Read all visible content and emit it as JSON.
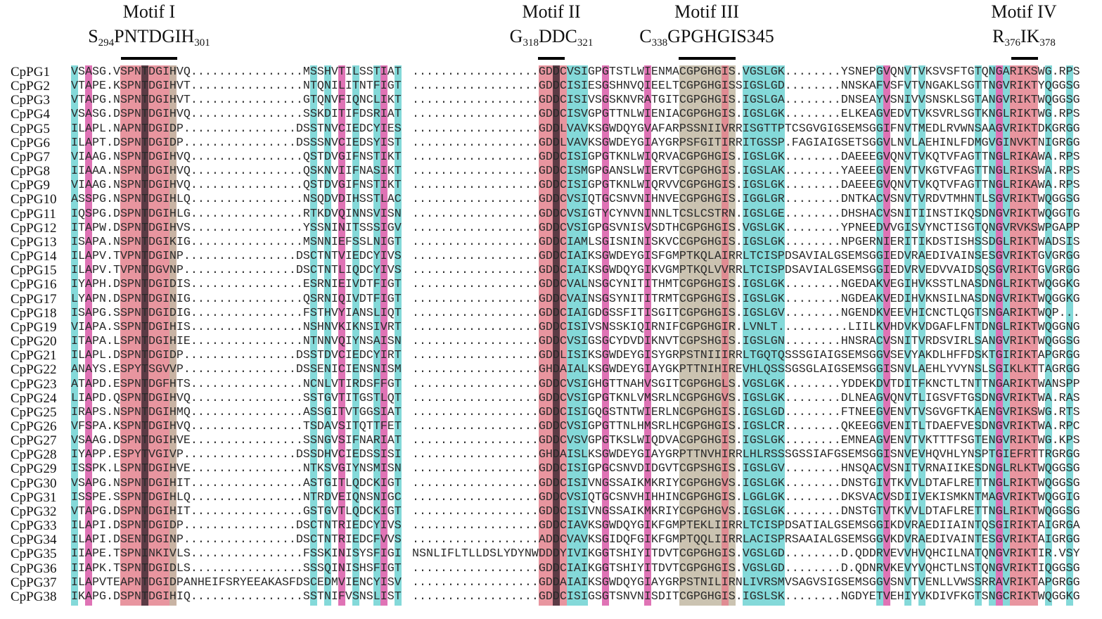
{
  "motifs": [
    {
      "title": "Motif I",
      "first": "S",
      "first_pos": "294",
      "middle": "PNTDGIH",
      "last_pos": "301"
    },
    {
      "title": "Motif II",
      "first": "G",
      "first_pos": "318",
      "middle": "DDC",
      "last_pos": "321"
    },
    {
      "title": "Motif III",
      "first": "C",
      "first_pos": "338",
      "middle": "GPGHGIS345",
      "last_pos": ""
    },
    {
      "title": "Motif IV",
      "first": "R",
      "first_pos": "376",
      "middle": "IK",
      "last_pos": "378"
    }
  ],
  "colors": {
    "cyan": "#6fd2d2",
    "magenta": "#d95aa8",
    "red": "#e4838e",
    "dark": "#5b3b45",
    "khaki": "#c2b9a3",
    "peach": "#f5cdb6"
  },
  "rows": [
    {
      "name": "CpPG1",
      "b1": "VSASG.VSPNTDGIHVQ................MSSHVTILSSTIAT",
      "b2": "..................GDDCVSIGPGTSTLWIENMACGPGHGIS.VGSLGK........YSNEPGVQNVTVKSVSFTGTQNGARIKSWG.RPS"
    },
    {
      "name": "CpPG2",
      "b1": "VTAPE.KSPNTDGIHVT................NTQNILITNTFIGT",
      "b2": "..................GDDCISIESGSHNVQIEELTCGPGHGISSIGSLGD........NNSKAFVSFVTVNGAKLSGTTNGVRIKTYQGGSG"
    },
    {
      "name": "CpPG3",
      "b1": "VTAPG.NSPNTDGIHVT................GTQNVFIQNCLIKT",
      "b2": "..................GDDCISIVSGSKNVRATGITCGPGHGIS.IGSLGA........DNSEAYVSNIVVSNSKLSGTANGVRIKTWQGGSG"
    },
    {
      "name": "CpPG4",
      "b1": "VSASG.DSPNTDGIHVQ................SSKDITIFDSRIAT",
      "b2": "..................GDDCISVGPGTTNLWIENIACGPGHGIS.IGSLGK........ELKEAGVEDVTVKSVRLSGTKNGLRIKTWG.RPS"
    },
    {
      "name": "CpPG5",
      "b1": "ILAPL.NAPNTDGIDP................DSSTNVCIEDCYIES",
      "b2": "..................GDDLVAVKSGWDQYGVAFARPSSNIIVRRISGTTPTCSGVGIGSEMSGGIFNVTMEDLRVWNSAAGVRIKTDKGRGG"
    },
    {
      "name": "CpPG6",
      "b1": "ILAPT.DSPNTDGIDP................DSSSNVCIEDSYIST",
      "b2": "..................GDDLVAVKSGWDEYGIAYGRPSFGITIRRITGSSP.FAGIAIGSETSGGVLNVLAEHINLFDMGVGINVKTNIGRGG"
    },
    {
      "name": "CpPG7",
      "b1": "VIAAG.NSPNTDGIHVQ................QSTDVGIFNSTIKT",
      "b2": "..................GDDCISIGPGTKNLWIQRVACGPGHGIS.IGSLGK........DAEEEGVQNVTVKQTVFAGTTNGLRIKAWA.RPS"
    },
    {
      "name": "CpPG8",
      "b1": "IIAAA.NSPNTDGIHVQ................QSKNVIIFNASIKT",
      "b2": "..................GDDCISMGPGANSLWIERVTCGPGHGIS.IGSLAK........YAEEEGVENVTVKGTVFAGTTNGLRIKSWA.RPS"
    },
    {
      "name": "CpPG9",
      "b1": "VIAAG.NSPNTDGIHVQ................QSTDVGIFNSTIKT",
      "b2": "..................GDDCISIGPGTKNLWIQRVVCGPGHGIS.IGSLGK........DAEEEGVQNVTVKQTVFAGTTNGLRIKAWA.RPS"
    },
    {
      "name": "CpPG10",
      "b1": "ASSPG.NSPNTDGIHLQ................NSQDVDIHSSTLAC",
      "b2": "..................GDDCVSIQTGCSNVNIHNVECGPGHGIS.IGGLGR........DNTKACVSNVTVRDVTMHNTLSGVRIKTWQGGSG"
    },
    {
      "name": "CpPG11",
      "b1": "IQSPG.DSPNTDGIHLG................RTKDVQINNSVISN",
      "b2": "..................GDDCVSIGTYCYNVNINNLTCSLCSTRN.IGSLGE........DHSHACVSNITIINSTIKQSDNGVRIKTWQGGTG"
    },
    {
      "name": "CpPG12",
      "b1": "ITAPW.DSPNTDGIHVS................YSSNINITSSSIGV",
      "b2": "..................GDDCVSIGPGSVNISVSDTHCGPGHGIS.VGSLGK........YPNEEDVVGISVYNCTISGTQNGVRVKSWPGAPP"
    },
    {
      "name": "CpPG13",
      "b1": "ISAPA.NSPNTDGIKIG................MSNNIEFSSLNIGT",
      "b2": "..................GDDCIAMLSGISNINISKVCCGPGHGIS.IGSLGK........NPGERNIERITIKDSTISHSSDGLRIKTWADSIS"
    },
    {
      "name": "CpPG14",
      "b1": "ILAPV.TVPNTDGINP................DSCTNTVIEDCYIVS",
      "b2": "..................GDDCIAIKSGWDEYGISFGMPTKQLAIRRLTCISPDSAVIALGSEMSGGIEDVRAEDIVAINSESGVRIKTGVGRGG"
    },
    {
      "name": "CpPG15",
      "b1": "ILAPV.TVPNTDGVNP................DSCTNTLIQDCYIVS",
      "b2": "..................GDDCIAIKSGWDQYGIKVGMPTKQLVVRRLTCISPDSAVIALGSEMSGGIEDVRVEDVVAIDSQSGVRIKTGVGRGG"
    },
    {
      "name": "CpPG16",
      "b1": "IYAPH.DSPNTDGIDIS................ESRNIEIVDTFIGT",
      "b2": "..................GDDCVALNSGCYNITITHMTCGPGHGIS.IGSLGK........NGEDAKVEGIHVKSSTLNASDNGLRIKTWQGGKG"
    },
    {
      "name": "CpPG17",
      "b1": "LYAPN.DSPNTDGINIG................QSRNIQIVDTFIGT",
      "b2": "..................GDDCVAINSGSYNITITRMTCGPGHGIS.IGSLGK........NGDEAKVEDIHVKNSILNASDNGVRIKTWQGGKG"
    },
    {
      "name": "CpPG18",
      "b1": "ISAPG.SSPNTDGIDIG................FSTHVYIANSLIQT",
      "b2": "..................GDDCIAIGDGSSFITISGITCGPGHGIS.IGSLGV........NGENDKVEEVHICNCTLQGTSNGARIKTWQP..."
    },
    {
      "name": "CpPG19",
      "b1": "VIAPA.SSPNTDGIHIS................NSHNVKIKNSIVRT",
      "b2": "..................GDDCISIVSNSSKIQIRNIFCGPGHGIR.LVNLT..........LIILKVHDVKVDGAFLFNTDNGLRIKTWQGGNG"
    },
    {
      "name": "CpPG20",
      "b1": "ITAPA.LSPNTDGIHIE................NTNNVQIYNSAISN",
      "b2": "..................GDDCVSIGSGCYDVDIKNVTCGPSHGIS.IGSLGN........HNSRACVSNITVRDSVIRLSANGVRIKTWQGGSG"
    },
    {
      "name": "CpPG21",
      "b1": "ILAPL.DSPNTDGIDP................DSSTDVCIEDCYIRT",
      "b2": "..................GDDLISIKSGWDEYGISYGRPSTNIIIRRLTGQTQSSSGIAIGSEMSGGVSEVYAKDLHFFDSKTGIRIKTAPGRGG"
    },
    {
      "name": "CpPG22",
      "b1": "ANAYS.ESPYTSGVVP................DSSENICIENSNISM",
      "b2": "..................GHDAIALKSGWDEYGIAYGKPTTNIHIREVHLQSSSGSGLAIGSEMSGGISNVLAEHLYVYNSLSGIKLKTTAGRGG"
    },
    {
      "name": "CpPG23",
      "b1": "ATAPD.ESPNTDGFHTS................NCNLVTIRDSFFGT",
      "b2": "..................GDDCVSIGHGTTNAHVSGITCGPGHGLS.VGSLGK........YDDEKDVTDITFKNCTLTNTTNGARIKTWANSPP"
    },
    {
      "name": "CpPG24",
      "b1": "LIAPD.QSPNTDGIHVQ................SSTGVTITGSTLQT",
      "b2": "..................GDDCVSIGPGTKNLVMSRLNCGPGHGVS.IGSLGK........DLNEAGVQNVTLIGSVFTGSDNGVRIKTWA.RAS"
    },
    {
      "name": "CpPG25",
      "b1": "IRAPS.NSPNTDGIHMQ................ASSGITVTGGSIAT",
      "b2": "..................GDDCISIGQGSTNTWIERLNCGPGHGIS.IGSLGD........FTNEEGVENVTVSGVGFTKAENGVRIKSWG.RTS"
    },
    {
      "name": "CpPG26",
      "b1": "VFSPA.KSPNTDGIHVQ................TSDAVSITQTTFET",
      "b2": "..................GDDCVSIGPGTTNLHMSRLHCGPGHGIS.IGSLCR........QKEEGGVENITLTDAEFVESDNGVRIKTWA.RPC"
    },
    {
      "name": "CpPG27",
      "b1": "VSAAG.DSPNTDGIHVE................SSNGVSIFNARIAT",
      "b2": "..................GDDCVSVGPGTKSLWIQDVACGPGHGIS.IGSLGK........EMNEAGVENVTVKTTTFSGTENGVRIKTWG.KPS"
    },
    {
      "name": "CpPG28",
      "b1": "IYAPP.ESPYTVGIVP................DSSDHVCIEDSSISI",
      "b2": "..................GHDAISLKSGWDEYGIAYGRPTTNVHIRRLHLRSSSGSSIAFGSEMSGGISNVEVHQVHLYNSPTGIEFRTTRGRGG"
    },
    {
      "name": "CpPG29",
      "b1": "ISSPK.LSPNTDGIHVE................NTKSVGIYNSMISN",
      "b2": "..................GDDCISIGPGCSNVDIDGVTCGPSHGIS.IGSLGV........HNSQACVSNITVRNAIIKESDNGLRLKTWQGGSG"
    },
    {
      "name": "CpPG30",
      "b1": "VSAPG.NSPNTDGIHIT................ASTGITLQDCKIGT",
      "b2": "..................GDDCISIVNGSSAIKMKRIYCGPGHGVS.IGSLGK........DNSTGIVTKVVLDTAFLRETTNGLRIKTWQGGSG"
    },
    {
      "name": "CpPG31",
      "b1": "ISSPE.SSPNTDGIHLQ................NTRDVEIQNSNIGC",
      "b2": "..................GDDCVSIQTGCSNVHIHHINCGPGHGIS.LGGLGK........DKSVACVSDIIVEKISMKNTMAGVRIKTWQGGIG"
    },
    {
      "name": "CpPG32",
      "b1": "VTAPG.DSPNTDGIHIT................GSTGVTLQDCKIGT",
      "b2": "..................GDDCISIVNGSSAIKMKRIYCGPGHGVS.IGSLGK........DNSTGTVTKVVLDTAFLRETTNGLRIKTWQGGSG"
    },
    {
      "name": "CpPG33",
      "b1": "ILAPI.DSPNTDGIDP................DSCTNTRIEDCYIVS",
      "b2": "..................GDDCIAVKSGWDQYGIKFGMPTEKLIIRRLTCISPDSATIALGSEMSGGIKDVRAEDIIAINTQSGIRIKTAIGRGA"
    },
    {
      "name": "CpPG34",
      "b1": "ILAPI.DSENTDGINP................DSCTNTRIEDCFVVS",
      "b2": "..................ADDCVAVKSGIDQFGIKFGMPTQQLIIRRLACISPRSAAIALGSEMSGGVKDVRAEDIVAINTESGVRIKTAIGRGG"
    },
    {
      "name": "CpPG35",
      "b1": "IIAPE.TSPNINKIVLS................FSSKINISYSFIGI",
      "b2": "NSNLIFLTLLDSLYDYNWDDDYIVIKGGTSHIYITDVTCGPGHGIS.VGSLGD........D.QDDRVEVVHVQHCILNATQNGVRIKTIR.VSY"
    },
    {
      "name": "CpPG36",
      "b1": "IIAPK.TSPNTDGIDLS................SSSQINISHSFIGT",
      "b2": "..................GDDCIAIKGGTSHIYITDVTCGPGHGIS.VGSLGD........D.QDNRVKEVYVQHCTLNSTQNGVRIKTIQGGSG"
    },
    {
      "name": "CpPG37",
      "b1": "ILAPVTEAPNTDGIDPANHEIFSRYEEAKASFDSCEDMVIENCYISV",
      "b2": "..................GDDAIAIKSGWDQYGIAYGRPSTNILIRNLIVRSMVSAGVSIGSEMSGGVSNVTVENLLVWSSRRAVRIKTAPGRGG"
    },
    {
      "name": "CpPG38",
      "b1": "IKAPG.DSPNTDGIHIQ................SSTNIFVSNSLIST",
      "b2": "..................GDDCISIGSGTSNVNISDITCGPGHGIS.IGSLSK........NGDYETVEHIYVKDIVFKGTSNGCRIKTWQGGKG"
    }
  ]
}
